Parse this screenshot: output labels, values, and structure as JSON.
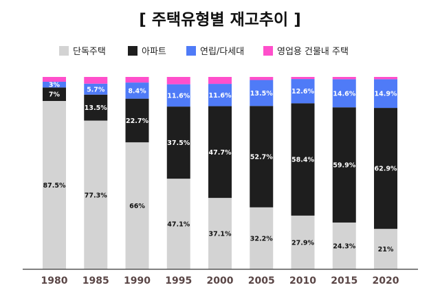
{
  "chart_data": {
    "type": "bar",
    "stacked": true,
    "title": "[ 주택유형별 재고추이 ]",
    "xlabel": "",
    "ylabel": "",
    "ylim": [
      0,
      100
    ],
    "grid": false,
    "legend_position": "top",
    "categories": [
      "1980",
      "1985",
      "1990",
      "1995",
      "2000",
      "2005",
      "2010",
      "2015",
      "2020"
    ],
    "series": [
      {
        "name": "단독주택",
        "color": "#d3d3d3",
        "label_color": "#111111",
        "values": [
          87.5,
          77.3,
          66,
          47.1,
          37.1,
          32.2,
          27.9,
          24.3,
          21
        ],
        "labels": [
          "87.5%",
          "77.3%",
          "66%",
          "47.1%",
          "37.1%",
          "32.2%",
          "27.9%",
          "24.3%",
          "21%"
        ]
      },
      {
        "name": "아파트",
        "color": "#1e1e1e",
        "label_color": "#ffffff",
        "values": [
          7,
          13.5,
          22.7,
          37.5,
          47.7,
          52.7,
          58.4,
          59.9,
          62.9
        ],
        "labels": [
          "7%",
          "13.5%",
          "22.7%",
          "37.5%",
          "47.7%",
          "52.7%",
          "58.4%",
          "59.9%",
          "62.9%"
        ]
      },
      {
        "name": "연립/다세대",
        "color": "#4f7bf7",
        "label_color": "#ffffff",
        "values": [
          3,
          5.7,
          8.4,
          11.6,
          11.6,
          13.5,
          12.6,
          14.6,
          14.9
        ],
        "labels": [
          "3%",
          "5.7%",
          "8.4%",
          "11.6%",
          "11.6%",
          "13.5%",
          "12.6%",
          "14.6%",
          "14.9%"
        ]
      },
      {
        "name": "영업용 건물내 주택",
        "color": "#ff4fcb",
        "label_color": "#ffffff",
        "values": [
          2.5,
          3.5,
          2.9,
          3.8,
          3.6,
          1.6,
          1.1,
          1.2,
          1.2
        ],
        "labels": [
          "",
          "",
          "",
          "",
          "",
          "",
          "",
          "",
          ""
        ]
      }
    ]
  }
}
